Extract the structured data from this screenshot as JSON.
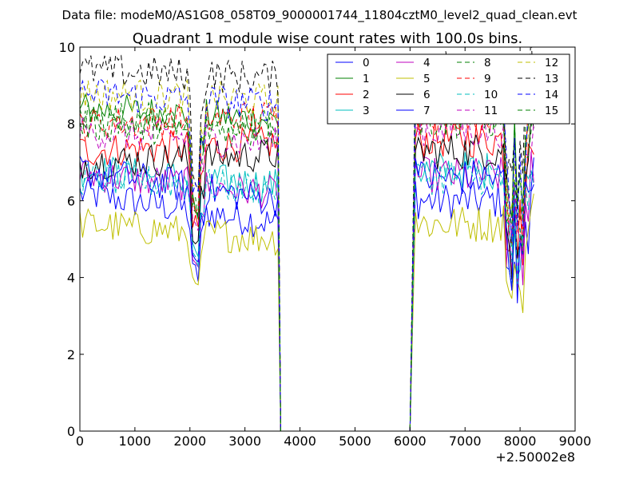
{
  "figure": {
    "suptitle": "Data file: modeM0/AS1G08_058T09_9000001744_11804cztM0_level2_quad_clean.evt"
  },
  "chart_data": {
    "type": "line",
    "title": "Quadrant 1 module wise count rates with 100.0s bins.",
    "xlabel": "",
    "ylabel": "",
    "xlim": [
      0,
      9000
    ],
    "ylim": [
      0,
      10
    ],
    "x_ticks": [
      "0",
      "1000",
      "2000",
      "3000",
      "4000",
      "5000",
      "6000",
      "7000",
      "8000",
      "9000"
    ],
    "y_ticks": [
      "0",
      "2",
      "4",
      "6",
      "8",
      "10"
    ],
    "x_offset_label": "+2.50002e8",
    "grid": false,
    "legend": {
      "placement": "top-right",
      "columns": 4
    },
    "gap": {
      "start": 3650,
      "end": 6000,
      "value": 0
    },
    "segments": [
      [
        0,
        3600
      ],
      [
        6100,
        8250
      ]
    ],
    "series": [
      {
        "name": "0",
        "color": "#0000ff",
        "dash": "solid",
        "start": 6.2,
        "end": 5.4
      },
      {
        "name": "1",
        "color": "#008000",
        "dash": "solid",
        "start": 8.4,
        "end": 8.1
      },
      {
        "name": "2",
        "color": "#ff0000",
        "dash": "solid",
        "start": 7.3,
        "end": 7.5
      },
      {
        "name": "3",
        "color": "#00bfbf",
        "dash": "solid",
        "start": 6.8,
        "end": 6.4
      },
      {
        "name": "4",
        "color": "#bf00bf",
        "dash": "solid",
        "start": 6.7,
        "end": 6.2
      },
      {
        "name": "5",
        "color": "#bfbf00",
        "dash": "solid",
        "start": 5.4,
        "end": 5.0
      },
      {
        "name": "6",
        "color": "#000000",
        "dash": "solid",
        "start": 7.0,
        "end": 7.2
      },
      {
        "name": "7",
        "color": "#0000ff",
        "dash": "solid",
        "start": 6.8,
        "end": 6.0
      },
      {
        "name": "8",
        "color": "#008000",
        "dash": "dashed",
        "start": 8.2,
        "end": 8.0
      },
      {
        "name": "9",
        "color": "#ff0000",
        "dash": "dashed",
        "start": 8.0,
        "end": 8.2
      },
      {
        "name": "10",
        "color": "#00bfbf",
        "dash": "dashed",
        "start": 6.6,
        "end": 6.3
      },
      {
        "name": "11",
        "color": "#bf00bf",
        "dash": "dashed",
        "start": 7.8,
        "end": 7.5
      },
      {
        "name": "12",
        "color": "#bfbf00",
        "dash": "dashed",
        "start": 8.8,
        "end": 8.6
      },
      {
        "name": "13",
        "color": "#000000",
        "dash": "dashed",
        "start": 9.4,
        "end": 9.2
      },
      {
        "name": "14",
        "color": "#0000ff",
        "dash": "dashed",
        "start": 8.8,
        "end": 8.5
      },
      {
        "name": "15",
        "color": "#008000",
        "dash": "dashed",
        "start": 8.0,
        "end": 7.8
      }
    ]
  }
}
